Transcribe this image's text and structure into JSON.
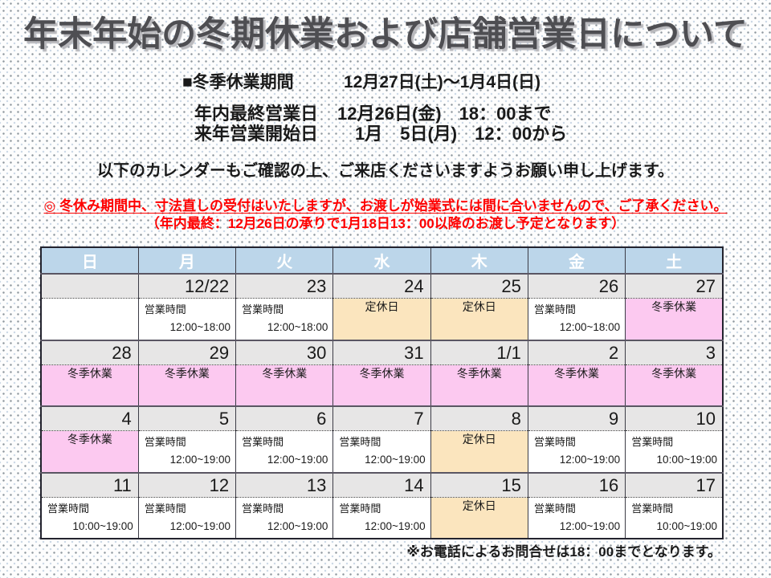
{
  "title": "年末年始の冬期休業および店舗営業日について",
  "notice": {
    "period_label": "■冬季休業期間",
    "period_value": "12月27日(土)～1月4日(日)",
    "last_day_label": "年内最終営業日",
    "last_day_value": "12月26日(金)　18：00まで",
    "resume_label": "来年営業開始日",
    "resume_value": "　1月　5日(月)　12：00から",
    "calendar_note": "以下のカレンダーもご確認の上、ご来店くださいますようお願い申し上げます。",
    "warning_line1": "◎ 冬休み期間中、寸法直しの受付はいたしますが、お渡しが始業式には間に合いませんので、ご了承ください。",
    "warning_line2": "（年内最終：12月26日の承りで1月18日13：00以降のお渡し予定となります）"
  },
  "calendar": {
    "weekdays": [
      "日",
      "月",
      "火",
      "水",
      "木",
      "金",
      "土"
    ],
    "weeks": [
      {
        "dates": [
          "",
          "12/22",
          "23",
          "24",
          "25",
          "26",
          "27"
        ],
        "cells": [
          {
            "type": "blank"
          },
          {
            "type": "hours",
            "label": "営業時間",
            "time": "12:00~18:00"
          },
          {
            "type": "hours",
            "label": "営業時間",
            "time": "12:00~18:00"
          },
          {
            "type": "closed",
            "label": "定休日"
          },
          {
            "type": "closed",
            "label": "定休日"
          },
          {
            "type": "hours",
            "label": "営業時間",
            "time": "12:00~18:00"
          },
          {
            "type": "holiday",
            "label": "冬季休業"
          }
        ]
      },
      {
        "dates": [
          "28",
          "29",
          "30",
          "31",
          "1/1",
          "2",
          "3"
        ],
        "cells": [
          {
            "type": "holiday",
            "label": "冬季休業"
          },
          {
            "type": "holiday",
            "label": "冬季休業"
          },
          {
            "type": "holiday",
            "label": "冬季休業"
          },
          {
            "type": "holiday",
            "label": "冬季休業"
          },
          {
            "type": "holiday",
            "label": "冬季休業"
          },
          {
            "type": "holiday",
            "label": "冬季休業"
          },
          {
            "type": "holiday",
            "label": "冬季休業"
          }
        ]
      },
      {
        "dates": [
          "4",
          "5",
          "6",
          "7",
          "8",
          "9",
          "10"
        ],
        "cells": [
          {
            "type": "holiday",
            "label": "冬季休業"
          },
          {
            "type": "hours",
            "label": "営業時間",
            "time": "12:00~19:00"
          },
          {
            "type": "hours",
            "label": "営業時間",
            "time": "12:00~19:00"
          },
          {
            "type": "hours",
            "label": "営業時間",
            "time": "12:00~19:00"
          },
          {
            "type": "closed",
            "label": "定休日"
          },
          {
            "type": "hours",
            "label": "営業時間",
            "time": "12:00~19:00"
          },
          {
            "type": "hours",
            "label": "営業時間",
            "time": "10:00~19:00"
          }
        ]
      },
      {
        "dates": [
          "11",
          "12",
          "13",
          "14",
          "15",
          "16",
          "17"
        ],
        "cells": [
          {
            "type": "hours",
            "label": "営業時間",
            "time": "10:00~19:00"
          },
          {
            "type": "hours",
            "label": "営業時間",
            "time": "12:00~19:00"
          },
          {
            "type": "hours",
            "label": "営業時間",
            "time": "12:00~19:00"
          },
          {
            "type": "hours",
            "label": "営業時間",
            "time": "12:00~19:00"
          },
          {
            "type": "closed",
            "label": "定休日"
          },
          {
            "type": "hours",
            "label": "営業時間",
            "time": "12:00~19:00"
          },
          {
            "type": "hours",
            "label": "営業時間",
            "time": "10:00~19:00"
          }
        ]
      }
    ],
    "footnote": "※お電話によるお問合せは18：00までとなります。"
  },
  "colors": {
    "weekday_header_bg": "#bcd6ea",
    "weekday_header_text": "#ffffff",
    "date_row_bg": "#e7e6e6",
    "regular_holiday_bg": "#fbe5be",
    "winter_holiday_bg": "#fcc9f0",
    "warning_text": "#ff0000",
    "title_text": "#4e4e52"
  }
}
